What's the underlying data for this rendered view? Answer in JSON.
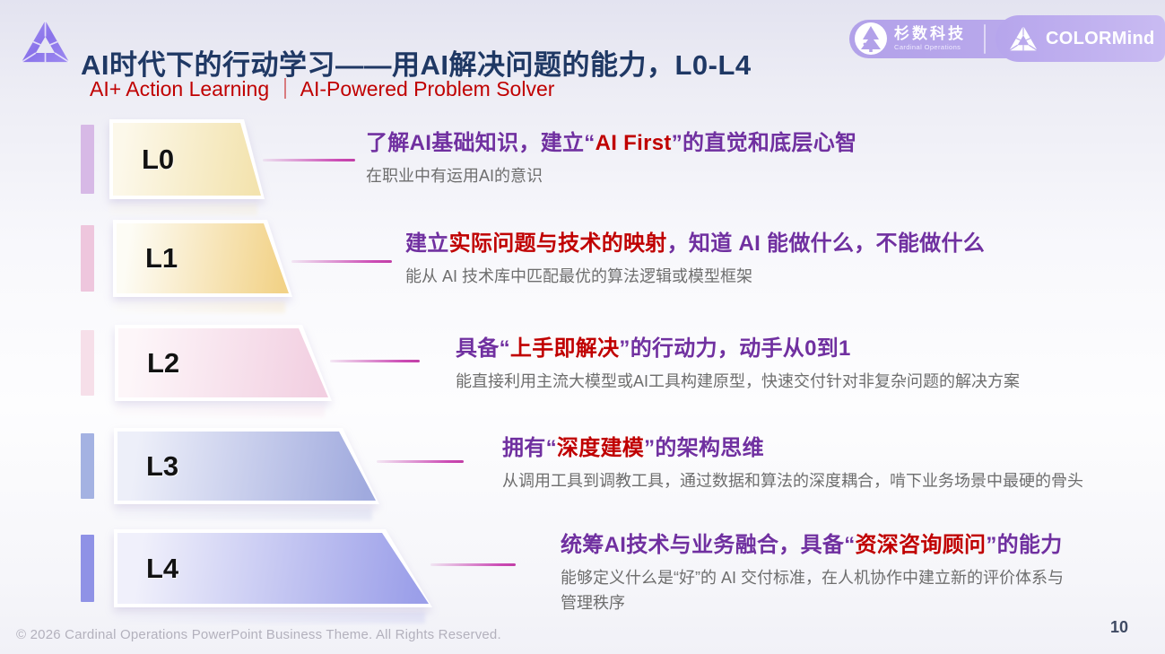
{
  "header": {
    "title": "AI时代下的行动学习——用AI解决问题的能力，L0-L4",
    "subtitle": "AI+ Action Learning ｜ AI-Powered Problem Solver",
    "brand": {
      "cardinal_cn": "杉数科技",
      "cardinal_en": "Cardinal Operations",
      "colormind": "COLORMind"
    },
    "icons": [
      "colormind-cube-triangle-logo",
      "cardinal-tree-logo"
    ]
  },
  "levels": [
    {
      "id": "L0",
      "title_parts": [
        {
          "t": "了解AI基础知识，建立“",
          "c": "purple"
        },
        {
          "t": "AI First",
          "c": "red"
        },
        {
          "t": "”的直觉和底层心智",
          "c": "purple"
        }
      ],
      "desc": "在职业中有运用AI的意识"
    },
    {
      "id": "L1",
      "title_parts": [
        {
          "t": "建立",
          "c": "purple"
        },
        {
          "t": "实际问题与技术的映射",
          "c": "red"
        },
        {
          "t": "，知道 AI 能做什么，不能做什么",
          "c": "purple"
        }
      ],
      "desc": "能从 AI 技术库中匹配最优的算法逻辑或模型框架"
    },
    {
      "id": "L2",
      "title_parts": [
        {
          "t": "具备“",
          "c": "purple"
        },
        {
          "t": "上手即解决",
          "c": "red"
        },
        {
          "t": "”的行动力，动手从0到1",
          "c": "purple"
        }
      ],
      "desc": "能直接利用主流大模型或AI工具构建原型，快速交付针对非复杂问题的解决方案"
    },
    {
      "id": "L3",
      "title_parts": [
        {
          "t": "拥有“",
          "c": "purple"
        },
        {
          "t": "深度建模",
          "c": "red"
        },
        {
          "t": "”的架构思维",
          "c": "purple"
        }
      ],
      "desc": "从调用工具到调教工具，通过数据和算法的深度耦合，啃下业务场景中最硬的骨头"
    },
    {
      "id": "L4",
      "title_parts": [
        {
          "t": "统筹AI技术与业务融合，具备“",
          "c": "purple"
        },
        {
          "t": "资深咨询顾问",
          "c": "red"
        },
        {
          "t": "”的能力",
          "c": "purple"
        }
      ],
      "desc": "能够定义什么是“好”的 AI 交付标准，在人机协作中建立新的评价体系与管理秩序"
    }
  ],
  "footer": {
    "copyright": "© 2026  Cardinal Operations PowerPoint Business Theme. All Rights Reserved.",
    "page": "10"
  },
  "colors": {
    "title_navy": "#1f3864",
    "accent_red": "#c00000",
    "accent_purple": "#7030a0",
    "desc_gray": "#6e6e6e",
    "connector_magenta": "#c13fa6",
    "pill_purple": "#b6a5ec"
  }
}
